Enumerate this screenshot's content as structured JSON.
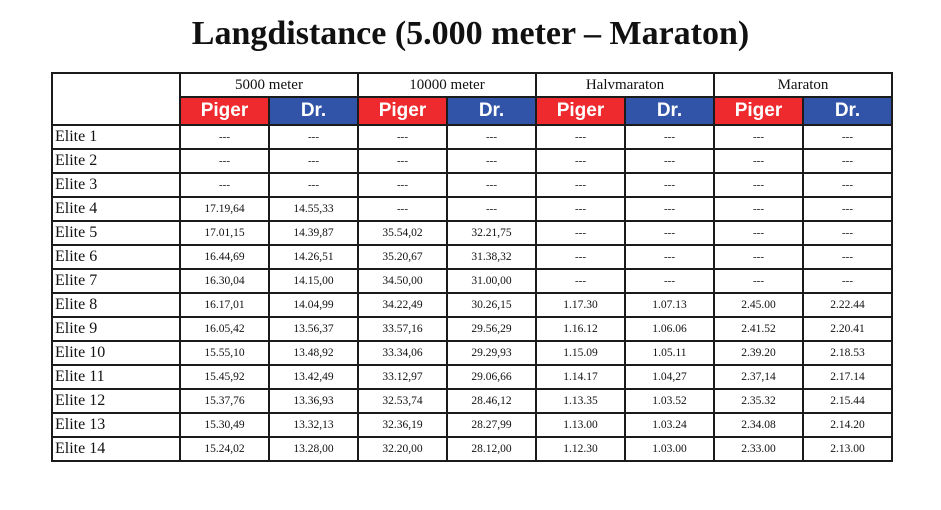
{
  "title": "Langdistance (5.000 meter – Maraton)",
  "columns": {
    "groups": [
      "5000 meter",
      "10000 meter",
      "Halvmaraton",
      "Maraton"
    ],
    "sub": [
      "Piger",
      "Dr."
    ]
  },
  "rows": [
    {
      "label": "Elite 1",
      "cells": [
        "---",
        "---",
        "---",
        "---",
        "---",
        "---",
        "---",
        "---"
      ]
    },
    {
      "label": "Elite 2",
      "cells": [
        "---",
        "---",
        "---",
        "---",
        "---",
        "---",
        "---",
        "---"
      ]
    },
    {
      "label": "Elite 3",
      "cells": [
        "---",
        "---",
        "---",
        "---",
        "---",
        "---",
        "---",
        "---"
      ]
    },
    {
      "label": "Elite 4",
      "cells": [
        "17.19,64",
        "14.55,33",
        "---",
        "---",
        "---",
        "---",
        "---",
        "---"
      ]
    },
    {
      "label": "Elite 5",
      "cells": [
        "17.01,15",
        "14.39,87",
        "35.54,02",
        "32.21,75",
        "---",
        "---",
        "---",
        "---"
      ]
    },
    {
      "label": "Elite 6",
      "cells": [
        "16.44,69",
        "14.26,51",
        "35.20,67",
        "31.38,32",
        "---",
        "---",
        "---",
        "---"
      ]
    },
    {
      "label": "Elite 7",
      "cells": [
        "16.30,04",
        "14.15,00",
        "34.50,00",
        "31.00,00",
        "---",
        "---",
        "---",
        "---"
      ]
    },
    {
      "label": "Elite 8",
      "cells": [
        "16.17,01",
        "14.04,99",
        "34.22,49",
        "30.26,15",
        "1.17.30",
        "1.07.13",
        "2.45.00",
        "2.22.44"
      ]
    },
    {
      "label": "Elite 9",
      "cells": [
        "16.05,42",
        "13.56,37",
        "33.57,16",
        "29.56,29",
        "1.16.12",
        "1.06.06",
        "2.41.52",
        "2.20.41"
      ]
    },
    {
      "label": "Elite 10",
      "cells": [
        "15.55,10",
        "13.48,92",
        "33.34,06",
        "29.29,93",
        "1.15.09",
        "1.05.11",
        "2.39.20",
        "2.18.53"
      ]
    },
    {
      "label": "Elite 11",
      "cells": [
        "15.45,92",
        "13.42,49",
        "33.12,97",
        "29.06,66",
        "1.14.17",
        "1.04,27",
        "2.37,14",
        "2.17.14"
      ]
    },
    {
      "label": "Elite 12",
      "cells": [
        "15.37,76",
        "13.36,93",
        "32.53,74",
        "28.46,12",
        "1.13.35",
        "1.03.52",
        "2.35.32",
        "2.15.44"
      ]
    },
    {
      "label": "Elite 13",
      "cells": [
        "15.30,49",
        "13.32,13",
        "32.36,19",
        "28.27,99",
        "1.13.00",
        "1.03.24",
        "2.34.08",
        "2.14.20"
      ]
    },
    {
      "label": "Elite 14",
      "cells": [
        "15.24,02",
        "13.28,00",
        "32.20,00",
        "28.12,00",
        "1.12.30",
        "1.03.00",
        "2.33.00",
        "2.13.00"
      ]
    }
  ],
  "colors": {
    "piger": "#ee2a2e",
    "dr": "#3154a8",
    "border": "#1b1b1b"
  }
}
